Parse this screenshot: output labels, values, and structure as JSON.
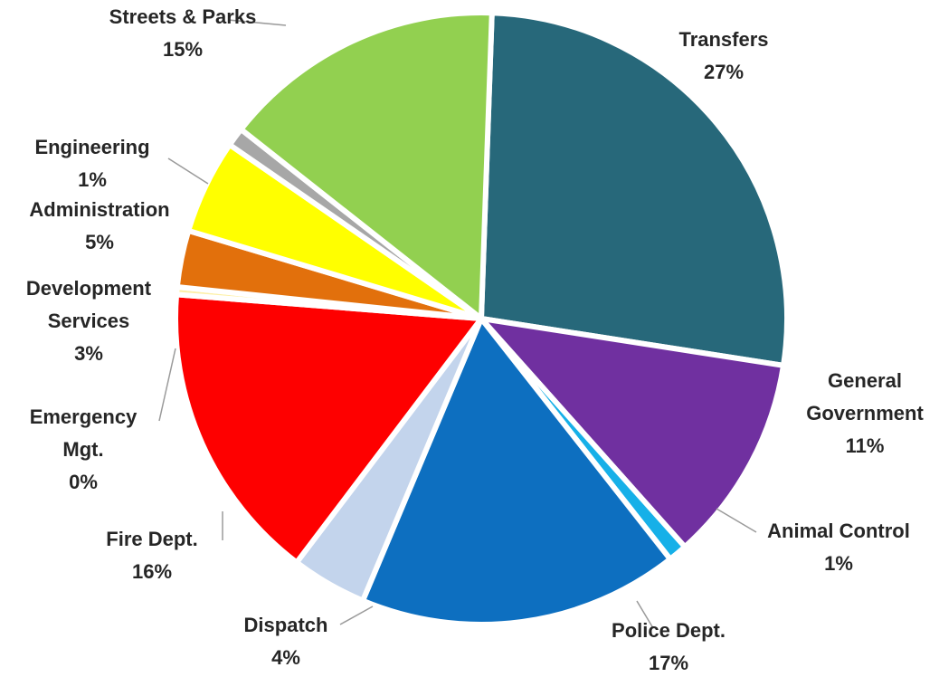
{
  "chart_data": {
    "type": "pie",
    "title": "",
    "slices": [
      {
        "label": [
          "Transfers"
        ],
        "percent_label": "27%",
        "value": 27,
        "color": "#27687a"
      },
      {
        "label": [
          "General",
          "Government"
        ],
        "percent_label": "11%",
        "value": 11,
        "color": "#7030a0"
      },
      {
        "label": [
          "Animal Control"
        ],
        "percent_label": "1%",
        "value": 1,
        "color": "#16b0e8"
      },
      {
        "label": [
          "Police Dept."
        ],
        "percent_label": "17%",
        "value": 17,
        "color": "#0d6fc0"
      },
      {
        "label": [
          "Dispatch"
        ],
        "percent_label": "4%",
        "value": 4,
        "color": "#c3d4ec"
      },
      {
        "label": [
          "Fire Dept."
        ],
        "percent_label": "16%",
        "value": 16,
        "color": "#fe0000"
      },
      {
        "label": [
          "Emergency",
          "Mgt."
        ],
        "percent_label": "0%",
        "value": 0.4,
        "color": "#fdf0a8"
      },
      {
        "label": [
          "Development",
          "Services"
        ],
        "percent_label": "3%",
        "value": 3,
        "color": "#e2700c"
      },
      {
        "label": [
          "Administration"
        ],
        "percent_label": "5%",
        "value": 5,
        "color": "#ffff00"
      },
      {
        "label": [
          "Engineering"
        ],
        "percent_label": "1%",
        "value": 1,
        "color": "#a7a7a7"
      },
      {
        "label": [
          "Streets & Parks"
        ],
        "percent_label": "15%",
        "value": 15,
        "color": "#92d050"
      }
    ]
  }
}
